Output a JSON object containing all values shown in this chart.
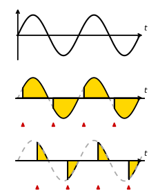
{
  "fill_color": "#FFD700",
  "fill_edge_color": "#000000",
  "sine_color": "#000000",
  "dash_color": "#aaaaaa",
  "tri_color": "#cc0000",
  "alpha2_deg": 30,
  "alpha3_deg": 115,
  "fig_width": 2.16,
  "fig_height": 2.83,
  "dpi": 100
}
